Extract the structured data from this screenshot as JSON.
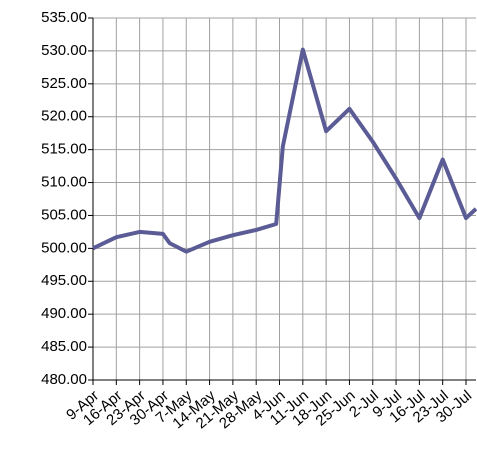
{
  "chart_data": {
    "type": "line",
    "x": [
      "9-Apr",
      "16-Apr",
      "23-Apr",
      "30-Apr",
      "2-May",
      "7-May",
      "14-May",
      "21-May",
      "28-May",
      "3-Jun",
      "5-Jun",
      "11-Jun",
      "18-Jun",
      "25-Jun",
      "2-Jul",
      "9-Jul",
      "16-Jul",
      "23-Jul",
      "30-Jul",
      "2-Aug"
    ],
    "values": [
      500.0,
      501.7,
      502.5,
      502.2,
      500.8,
      499.5,
      501.0,
      502.0,
      502.8,
      503.7,
      515.5,
      530.2,
      517.8,
      521.2,
      516.2,
      510.6,
      504.6,
      513.5,
      504.6,
      506.0
    ],
    "color": "#5b5b96",
    "xlim": [
      "9-Apr",
      "2-Aug"
    ],
    "xticks": [
      "9-Apr",
      "16-Apr",
      "23-Apr",
      "30-Apr",
      "7-May",
      "14-May",
      "21-May",
      "28-May",
      "4-Jun",
      "11-Jun",
      "18-Jun",
      "25-Jun",
      "2-Jul",
      "9-Jul",
      "16-Jul",
      "23-Jul",
      "30-Jul"
    ],
    "ylim": [
      480,
      535
    ],
    "yticks": [
      {
        "value": 480,
        "label": "480.00"
      },
      {
        "value": 485,
        "label": "485.00"
      },
      {
        "value": 490,
        "label": "490.00"
      },
      {
        "value": 495,
        "label": "495.00"
      },
      {
        "value": 500,
        "label": "500.00"
      },
      {
        "value": 505,
        "label": "505.00"
      },
      {
        "value": 510,
        "label": "510.00"
      },
      {
        "value": 515,
        "label": "515.00"
      },
      {
        "value": 520,
        "label": "520.00"
      },
      {
        "value": 525,
        "label": "525.00"
      },
      {
        "value": 530,
        "label": "530.00"
      },
      {
        "value": 535,
        "label": "535.00"
      }
    ],
    "grid": true
  }
}
